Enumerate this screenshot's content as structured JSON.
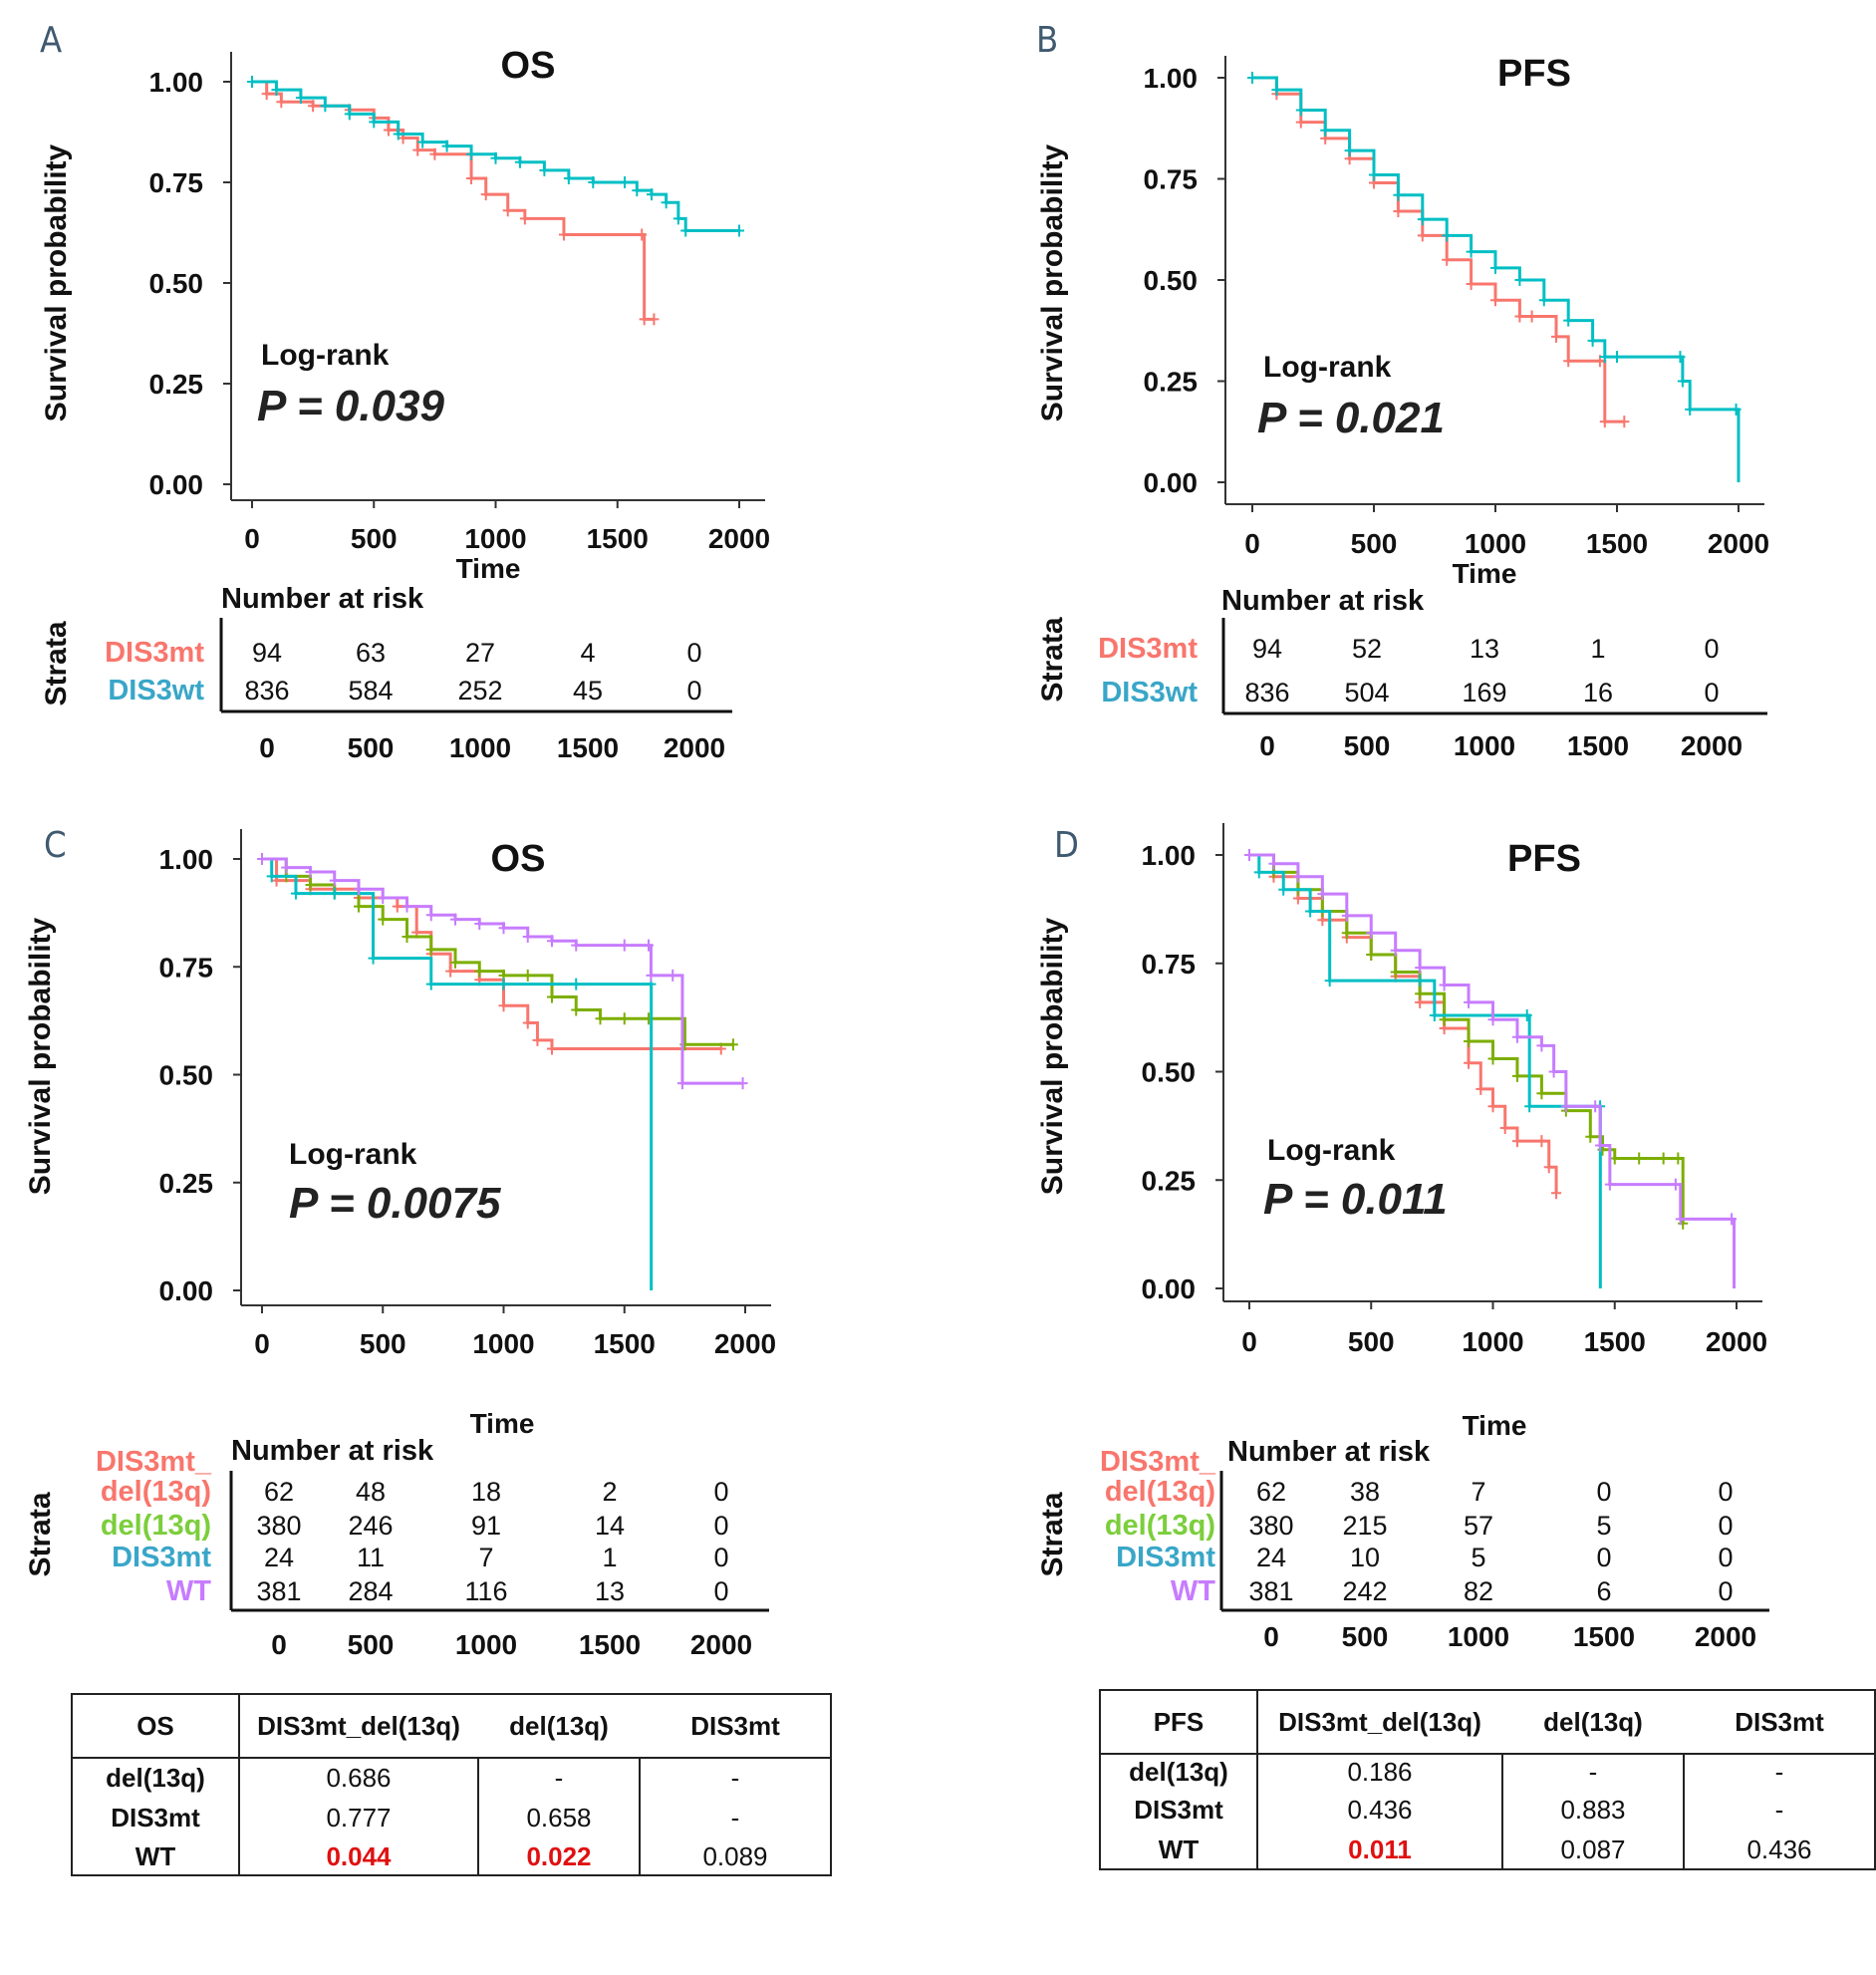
{
  "chart_data": [
    {
      "panel": "A",
      "type": "line",
      "subtype": "kaplan-meier",
      "title": "OS",
      "xlabel": "Time",
      "ylabel": "Survival probability",
      "xlim": [
        0,
        2000
      ],
      "ylim": [
        0,
        1
      ],
      "xticks": [
        "0",
        "500",
        "1000",
        "1500",
        "2000"
      ],
      "yticks": [
        "0.00",
        "0.25",
        "0.50",
        "0.75",
        "1.00"
      ],
      "annotation": {
        "test": "Log-rank",
        "p": "P = 0.039"
      },
      "series": [
        {
          "name": "DIS3mt",
          "color": "#f8766d",
          "x": [
            0,
            60,
            120,
            250,
            400,
            500,
            560,
            620,
            680,
            750,
            900,
            960,
            1050,
            1120,
            1280,
            1600,
            1610,
            1650
          ],
          "y": [
            1.0,
            0.97,
            0.95,
            0.94,
            0.93,
            0.91,
            0.88,
            0.86,
            0.83,
            0.82,
            0.76,
            0.72,
            0.68,
            0.66,
            0.62,
            0.62,
            0.41,
            0.41
          ]
        },
        {
          "name": "DIS3wt",
          "color": "#00bfc4",
          "x": [
            0,
            100,
            200,
            300,
            400,
            500,
            600,
            700,
            800,
            900,
            1000,
            1100,
            1200,
            1300,
            1400,
            1530,
            1580,
            1640,
            1700,
            1750,
            1780,
            2000
          ],
          "y": [
            1.0,
            0.98,
            0.96,
            0.94,
            0.92,
            0.9,
            0.87,
            0.85,
            0.84,
            0.82,
            0.81,
            0.8,
            0.78,
            0.76,
            0.75,
            0.75,
            0.73,
            0.72,
            0.7,
            0.66,
            0.63,
            0.63
          ]
        }
      ],
      "risk_table": {
        "header": "Number at risk",
        "strata_label": "Strata",
        "times": [
          "0",
          "500",
          "1000",
          "1500",
          "2000"
        ],
        "rows": [
          {
            "name": "DIS3mt",
            "color": "#f8766d",
            "values": [
              "94",
              "63",
              "27",
              "4",
              "0"
            ]
          },
          {
            "name": "DIS3wt",
            "color": "#39a6c8",
            "values": [
              "836",
              "584",
              "252",
              "45",
              "0"
            ]
          }
        ]
      }
    },
    {
      "panel": "B",
      "type": "line",
      "subtype": "kaplan-meier",
      "title": "PFS",
      "xlabel": "Time",
      "ylabel": "Survival probability",
      "xlim": [
        0,
        2000
      ],
      "ylim": [
        0,
        1
      ],
      "xticks": [
        "0",
        "500",
        "1000",
        "1500",
        "2000"
      ],
      "yticks": [
        "0.00",
        "0.25",
        "0.50",
        "0.75",
        "1.00"
      ],
      "annotation": {
        "test": "Log-rank",
        "p": "P = 0.021"
      },
      "series": [
        {
          "name": "DIS3mt",
          "color": "#f8766d",
          "x": [
            0,
            100,
            200,
            300,
            400,
            500,
            600,
            700,
            800,
            900,
            1000,
            1100,
            1150,
            1250,
            1300,
            1430,
            1450,
            1530
          ],
          "y": [
            1.0,
            0.96,
            0.89,
            0.85,
            0.8,
            0.74,
            0.67,
            0.61,
            0.55,
            0.49,
            0.45,
            0.41,
            0.41,
            0.36,
            0.3,
            0.3,
            0.15,
            0.15
          ]
        },
        {
          "name": "DIS3wt",
          "color": "#00bfc4",
          "x": [
            0,
            100,
            200,
            300,
            400,
            500,
            600,
            700,
            800,
            900,
            1000,
            1100,
            1200,
            1300,
            1400,
            1450,
            1500,
            1760,
            1770,
            1800,
            1990,
            2000
          ],
          "y": [
            1.0,
            0.97,
            0.92,
            0.87,
            0.82,
            0.76,
            0.71,
            0.65,
            0.61,
            0.57,
            0.53,
            0.5,
            0.45,
            0.4,
            0.35,
            0.31,
            0.31,
            0.31,
            0.25,
            0.18,
            0.18,
            0.0
          ]
        }
      ],
      "risk_table": {
        "header": "Number at risk",
        "strata_label": "Strata",
        "times": [
          "0",
          "500",
          "1000",
          "1500",
          "2000"
        ],
        "rows": [
          {
            "name": "DIS3mt",
            "color": "#f8766d",
            "values": [
              "94",
              "52",
              "13",
              "1",
              "0"
            ]
          },
          {
            "name": "DIS3wt",
            "color": "#39a6c8",
            "values": [
              "836",
              "504",
              "169",
              "16",
              "0"
            ]
          }
        ]
      }
    },
    {
      "panel": "C",
      "type": "line",
      "subtype": "kaplan-meier",
      "title": "OS",
      "xlabel": "Time",
      "ylabel": "Survival probability",
      "xlim": [
        0,
        2000
      ],
      "ylim": [
        0,
        1
      ],
      "xticks": [
        "0",
        "500",
        "1000",
        "1500",
        "2000"
      ],
      "yticks": [
        "0.00",
        "0.25",
        "0.50",
        "0.75",
        "1.00"
      ],
      "annotation": {
        "test": "Log-rank",
        "p": "P = 0.0075"
      },
      "series": [
        {
          "name": "DIS3mt_del(13q)",
          "color": "#f8766d",
          "x": [
            0,
            60,
            200,
            400,
            560,
            640,
            700,
            780,
            900,
            1000,
            1100,
            1140,
            1200,
            1900
          ],
          "y": [
            1.0,
            0.95,
            0.93,
            0.91,
            0.89,
            0.83,
            0.78,
            0.74,
            0.72,
            0.66,
            0.62,
            0.58,
            0.56,
            0.56
          ]
        },
        {
          "name": "del(13q)",
          "color": "#7cae00",
          "x": [
            0,
            100,
            200,
            300,
            400,
            500,
            600,
            700,
            800,
            900,
            1000,
            1100,
            1200,
            1300,
            1400,
            1500,
            1600,
            1750,
            1950
          ],
          "y": [
            1.0,
            0.96,
            0.94,
            0.92,
            0.89,
            0.86,
            0.82,
            0.79,
            0.76,
            0.74,
            0.73,
            0.73,
            0.68,
            0.65,
            0.63,
            0.63,
            0.63,
            0.57,
            0.57
          ]
        },
        {
          "name": "DIS3mt",
          "color": "#00bfc4",
          "x": [
            0,
            40,
            140,
            300,
            460,
            700,
            1000,
            1300,
            1610,
            1611
          ],
          "y": [
            1.0,
            0.96,
            0.92,
            0.92,
            0.77,
            0.71,
            0.71,
            0.71,
            0.71,
            0.0
          ]
        },
        {
          "name": "WT",
          "color": "#c77cff",
          "x": [
            0,
            100,
            200,
            300,
            400,
            500,
            600,
            700,
            800,
            900,
            1000,
            1100,
            1200,
            1300,
            1500,
            1600,
            1610,
            1700,
            1740,
            1990
          ],
          "y": [
            1.0,
            0.98,
            0.97,
            0.95,
            0.93,
            0.91,
            0.89,
            0.87,
            0.86,
            0.85,
            0.84,
            0.82,
            0.81,
            0.8,
            0.8,
            0.8,
            0.73,
            0.73,
            0.48,
            0.48
          ]
        }
      ],
      "risk_table": {
        "header": "Number at risk",
        "strata_label": "Strata",
        "times": [
          "0",
          "500",
          "1000",
          "1500",
          "2000"
        ],
        "rows": [
          {
            "name": "DIS3mt_",
            "name2": "del(13q)",
            "color": "#f8766d",
            "values": [
              "62",
              "48",
              "18",
              "2",
              "0"
            ]
          },
          {
            "name": "del(13q)",
            "color": "#7cce3c",
            "values": [
              "380",
              "246",
              "91",
              "14",
              "0"
            ]
          },
          {
            "name": "DIS3mt",
            "color": "#39a6c8",
            "values": [
              "24",
              "11",
              "7",
              "1",
              "0"
            ]
          },
          {
            "name": "WT",
            "color": "#c77cff",
            "values": [
              "381",
              "284",
              "116",
              "13",
              "0"
            ]
          }
        ]
      },
      "pairwise_table": {
        "corner": "OS",
        "columns": [
          "DIS3mt_del(13q)",
          "del(13q)",
          "DIS3mt"
        ],
        "rows": [
          {
            "label": "del(13q)",
            "values": [
              "0.686",
              "-",
              "-"
            ],
            "significant": [
              false,
              false,
              false
            ]
          },
          {
            "label": "DIS3mt",
            "values": [
              "0.777",
              "0.658",
              "-"
            ],
            "significant": [
              false,
              false,
              false
            ]
          },
          {
            "label": "WT",
            "values": [
              "0.044",
              "0.022",
              "0.089"
            ],
            "significant": [
              true,
              true,
              false
            ]
          }
        ]
      }
    },
    {
      "panel": "D",
      "type": "line",
      "subtype": "kaplan-meier",
      "title": "PFS",
      "xlabel": "Time",
      "ylabel": "Survival probability",
      "xlim": [
        0,
        2000
      ],
      "ylim": [
        0,
        1
      ],
      "xticks": [
        "0",
        "500",
        "1000",
        "1500",
        "2000"
      ],
      "yticks": [
        "0.00",
        "0.25",
        "0.50",
        "0.75",
        "1.00"
      ],
      "annotation": {
        "test": "Log-rank",
        "p": "P = 0.011"
      },
      "series": [
        {
          "name": "DIS3mt_del(13q)",
          "color": "#f8766d",
          "x": [
            0,
            100,
            200,
            300,
            400,
            500,
            600,
            700,
            800,
            900,
            950,
            1000,
            1050,
            1100,
            1200,
            1230,
            1260
          ],
          "y": [
            1.0,
            0.95,
            0.9,
            0.85,
            0.81,
            0.77,
            0.72,
            0.66,
            0.6,
            0.52,
            0.46,
            0.42,
            0.37,
            0.34,
            0.34,
            0.28,
            0.22
          ]
        },
        {
          "name": "del(13q)",
          "color": "#7cae00",
          "x": [
            0,
            100,
            200,
            300,
            400,
            500,
            600,
            700,
            800,
            900,
            1000,
            1100,
            1200,
            1300,
            1400,
            1450,
            1500,
            1600,
            1700,
            1760,
            1780
          ],
          "y": [
            1.0,
            0.96,
            0.92,
            0.87,
            0.82,
            0.77,
            0.73,
            0.68,
            0.62,
            0.57,
            0.53,
            0.49,
            0.45,
            0.41,
            0.35,
            0.32,
            0.3,
            0.3,
            0.3,
            0.3,
            0.15
          ]
        },
        {
          "name": "DIS3mt",
          "color": "#00bfc4",
          "x": [
            0,
            40,
            140,
            250,
            330,
            700,
            760,
            1140,
            1150,
            1440,
            1441
          ],
          "y": [
            1.0,
            0.96,
            0.92,
            0.87,
            0.71,
            0.71,
            0.63,
            0.63,
            0.42,
            0.42,
            0.0
          ]
        },
        {
          "name": "WT",
          "color": "#c77cff",
          "x": [
            0,
            100,
            200,
            300,
            400,
            500,
            600,
            700,
            800,
            900,
            1000,
            1100,
            1200,
            1250,
            1300,
            1420,
            1440,
            1480,
            1750,
            1770,
            1980,
            1990
          ],
          "y": [
            1.0,
            0.98,
            0.95,
            0.91,
            0.86,
            0.82,
            0.78,
            0.74,
            0.7,
            0.66,
            0.62,
            0.58,
            0.56,
            0.5,
            0.42,
            0.42,
            0.33,
            0.24,
            0.24,
            0.16,
            0.16,
            0.0
          ]
        }
      ],
      "risk_table": {
        "header": "Number at risk",
        "strata_label": "Strata",
        "times": [
          "0",
          "500",
          "1000",
          "1500",
          "2000"
        ],
        "rows": [
          {
            "name": "DIS3mt_",
            "name2": "del(13q)",
            "color": "#f8766d",
            "values": [
              "62",
              "38",
              "7",
              "0",
              "0"
            ]
          },
          {
            "name": "del(13q)",
            "color": "#7cce3c",
            "values": [
              "380",
              "215",
              "57",
              "5",
              "0"
            ]
          },
          {
            "name": "DIS3mt",
            "color": "#39a6c8",
            "values": [
              "24",
              "10",
              "5",
              "0",
              "0"
            ]
          },
          {
            "name": "WT",
            "color": "#c77cff",
            "values": [
              "381",
              "242",
              "82",
              "6",
              "0"
            ]
          }
        ]
      },
      "pairwise_table": {
        "corner": "PFS",
        "columns": [
          "DIS3mt_del(13q)",
          "del(13q)",
          "DIS3mt"
        ],
        "rows": [
          {
            "label": "del(13q)",
            "values": [
              "0.186",
              "-",
              "-"
            ],
            "significant": [
              false,
              false,
              false
            ]
          },
          {
            "label": "DIS3mt",
            "values": [
              "0.436",
              "0.883",
              "-"
            ],
            "significant": [
              false,
              false,
              false
            ]
          },
          {
            "label": "WT",
            "values": [
              "0.011",
              "0.087",
              "0.436"
            ],
            "significant": [
              true,
              false,
              false
            ]
          }
        ]
      }
    }
  ]
}
